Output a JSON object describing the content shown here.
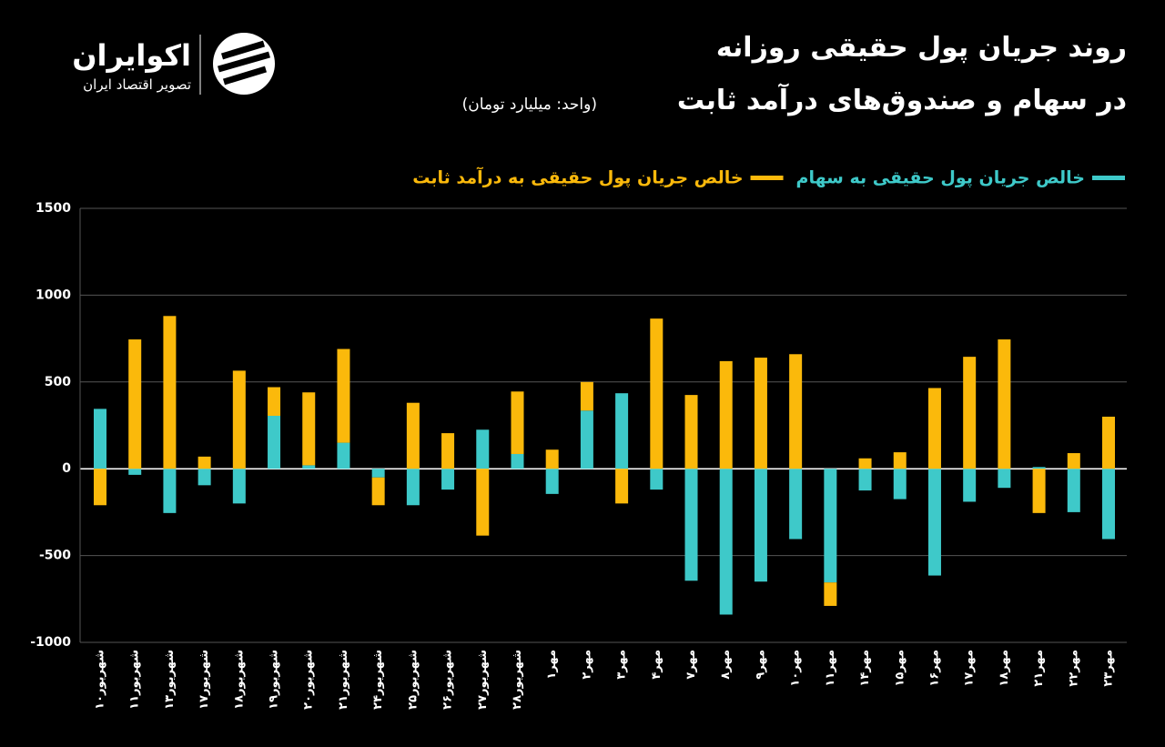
{
  "logo": {
    "name": "اکوایران",
    "tagline": "تصویر اقتصاد ایران"
  },
  "chart_data": {
    "type": "stacked-bar",
    "title": "روند جریان پول حقیقی روزانه",
    "subtitle": "در سهام و صندوق‌های درآمد ثابت",
    "unit": "(واحد: میلیارد تومان)",
    "categories": [
      "شهریور۱۰",
      "شهریور۱۱",
      "شهریور۱۳",
      "شهریور۱۷",
      "شهریور۱۸",
      "شهریور۱۹",
      "شهریور۲۰",
      "شهریور۲۱",
      "شهریور۲۴",
      "شهریور۲۵",
      "شهریور۲۶",
      "شهریور۲۷",
      "شهریور۲۸",
      "مهر۱",
      "مهر۲",
      "مهر۳",
      "مهر۴",
      "مهر۷",
      "مهر۸",
      "مهر۹",
      "مهر۱۰",
      "مهر۱۱",
      "مهر۱۴",
      "مهر۱۵",
      "مهر۱۶",
      "مهر۱۷",
      "مهر۱۸",
      "مهر۲۱",
      "مهر۲۲",
      "مهر۲۳"
    ],
    "series": [
      {
        "name": "خالص جریان پول حقیقی به سهام",
        "color": "#3ec9c9",
        "values": [
          345,
          -35,
          -255,
          -95,
          -200,
          305,
          20,
          150,
          -50,
          -210,
          -120,
          225,
          85,
          -145,
          335,
          435,
          -120,
          -645,
          -840,
          -650,
          -405,
          -655,
          -125,
          -175,
          -615,
          -190,
          -110,
          10,
          -250,
          -405
        ]
      },
      {
        "name": "خالص جریان پول حقیقی به درآمد ثابت",
        "color": "#fbb90b",
        "values": [
          -210,
          745,
          880,
          70,
          565,
          165,
          420,
          540,
          -160,
          380,
          205,
          -385,
          360,
          110,
          165,
          -200,
          865,
          425,
          620,
          640,
          660,
          -135,
          60,
          95,
          465,
          645,
          745,
          -255,
          90,
          300
        ]
      }
    ],
    "ylim": [
      -1000,
      1500
    ],
    "yticks": [
      -1000,
      -500,
      0,
      500,
      1000,
      1500
    ],
    "grid": true
  }
}
